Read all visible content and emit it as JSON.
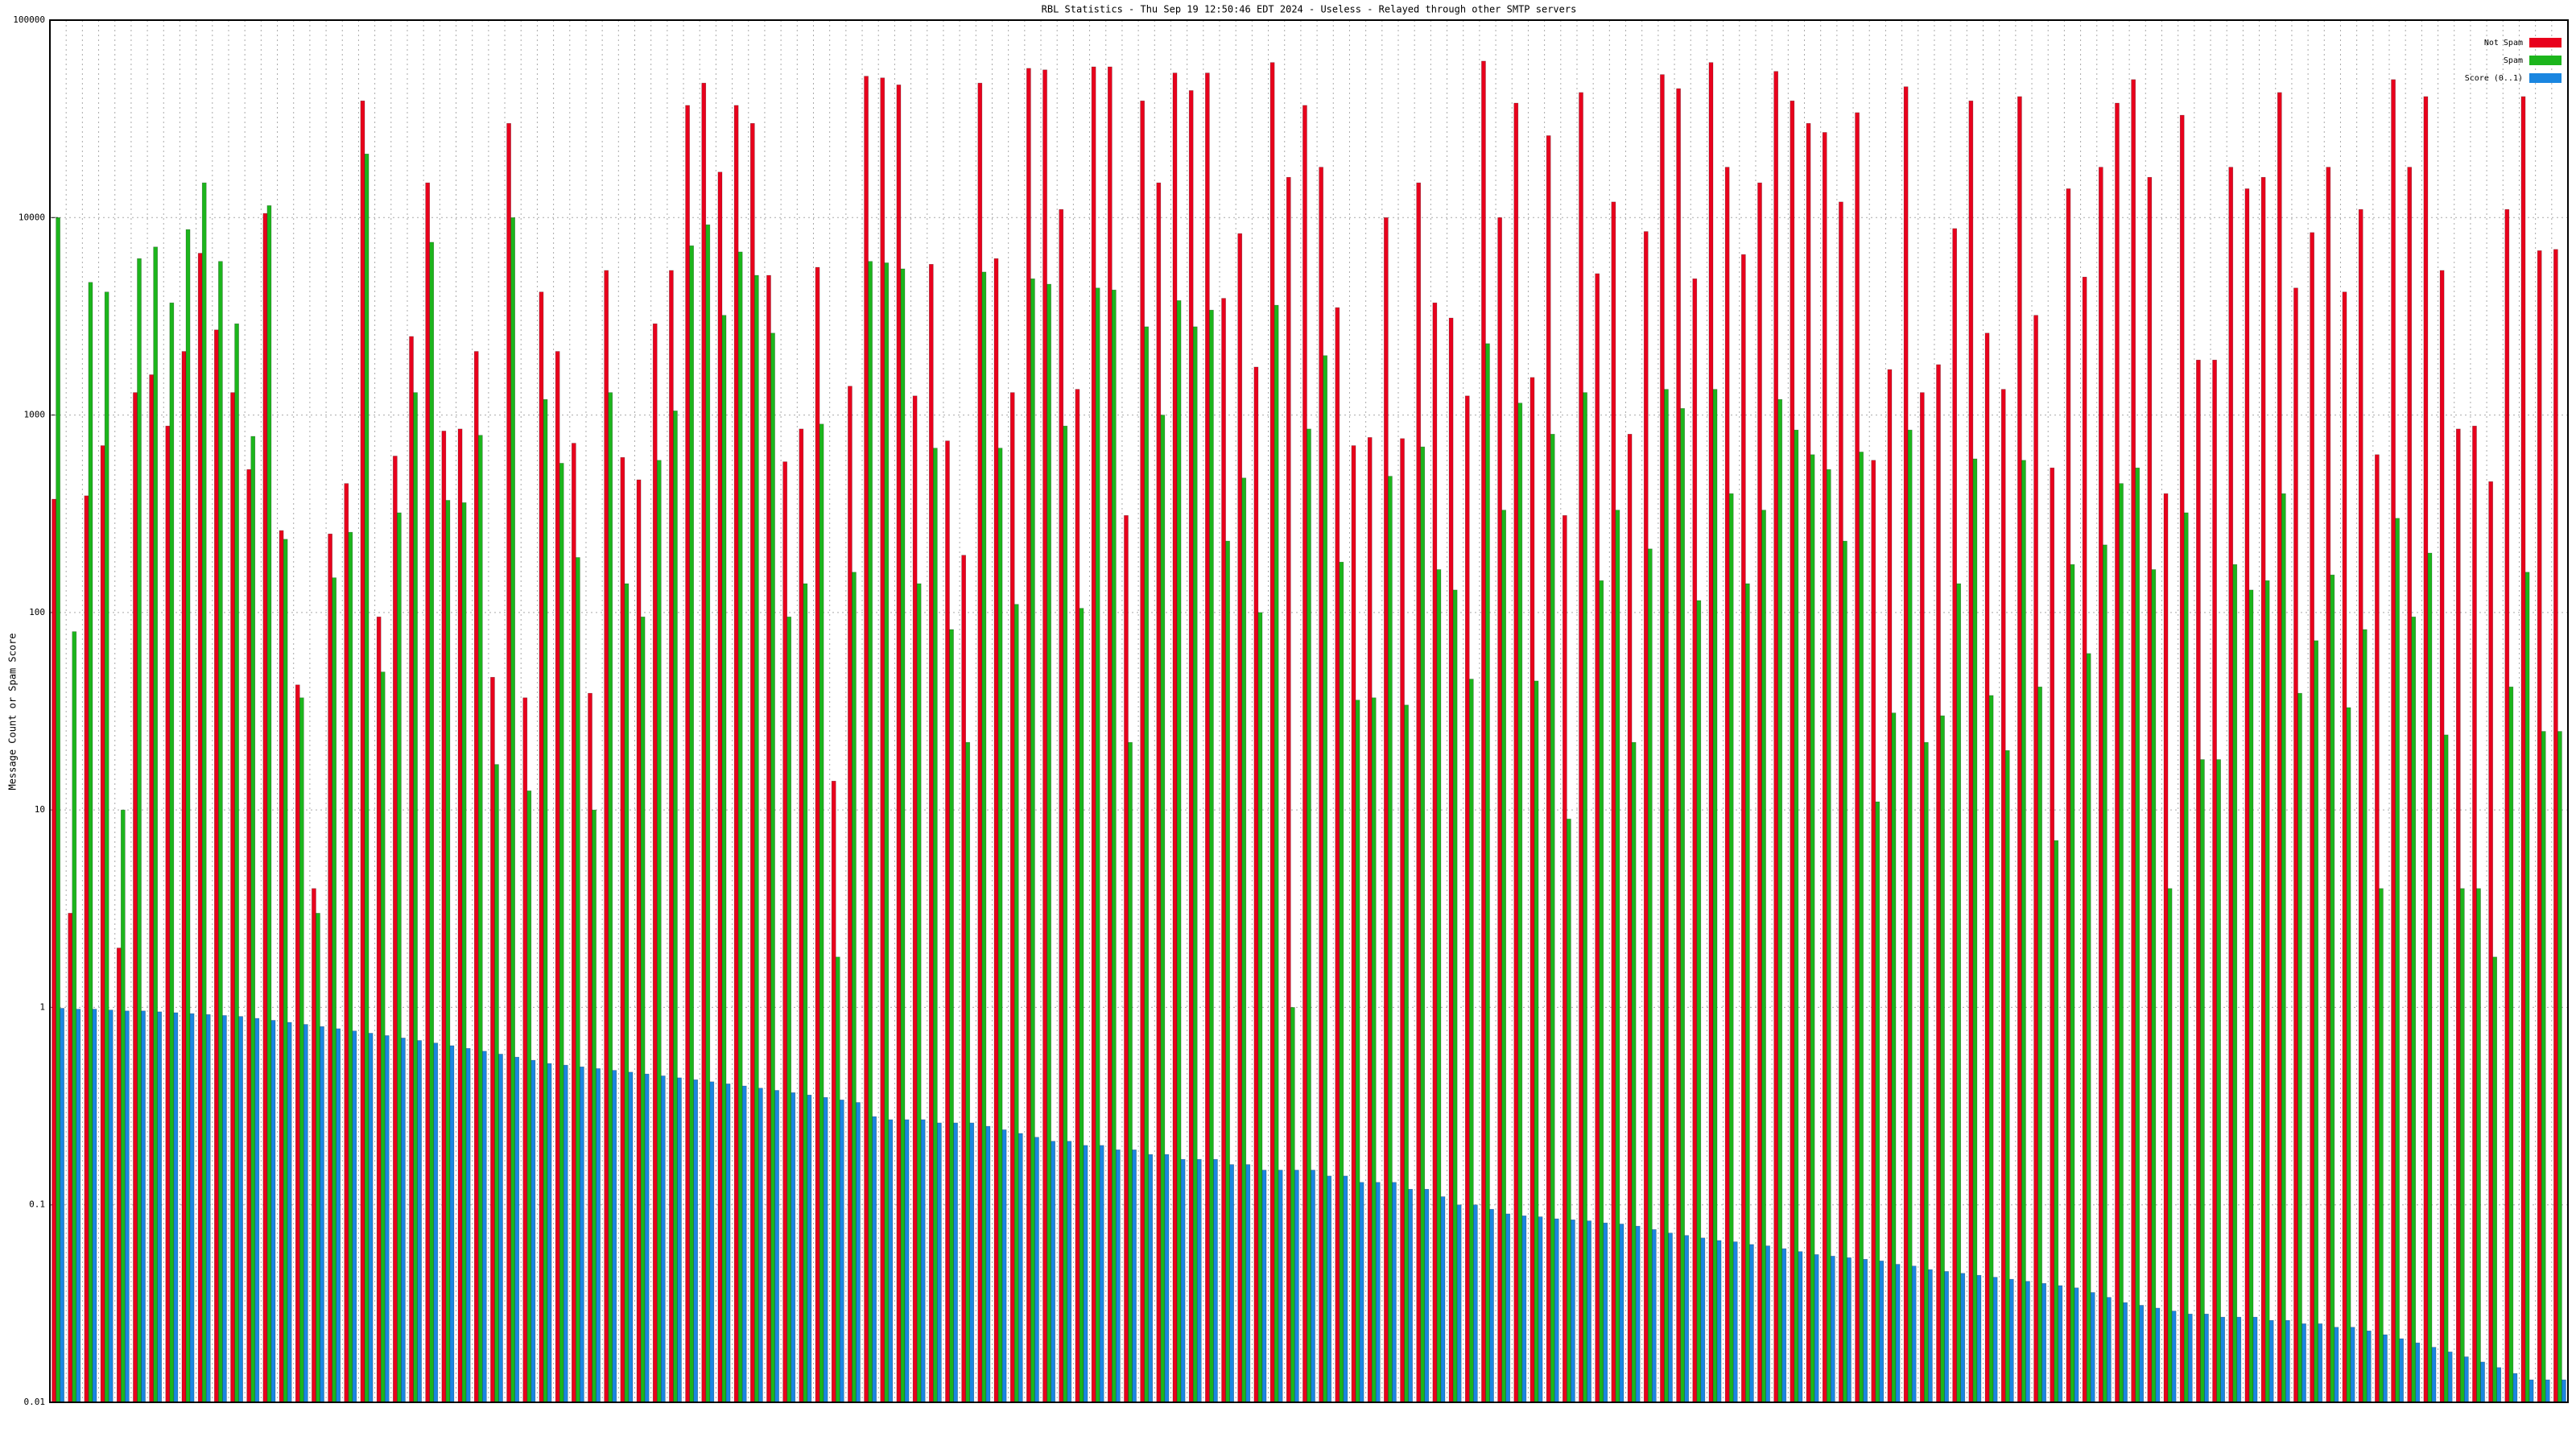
{
  "chart_data": {
    "type": "bar",
    "title": "RBL Statistics - Thu Sep 19 12:50:46 EDT 2024 - Useless - Relayed through other SMTP servers",
    "y_label": "Message Count or Spam Score",
    "log_scale": true,
    "grid": true,
    "legend": "upper right",
    "ylim": [
      0.01,
      100000
    ],
    "yticks": [
      0.01,
      0.1,
      1,
      10,
      100,
      1000,
      10000,
      100000
    ],
    "categories": [
      null,
      null,
      null,
      null,
      null,
      null,
      null,
      null,
      null,
      null,
      null,
      null,
      null,
      null,
      null,
      null,
      null,
      null,
      null,
      null,
      null,
      null,
      null,
      null,
      null,
      null,
      null,
      null,
      null,
      null,
      null,
      null,
      null,
      null,
      null,
      null,
      null,
      null,
      null,
      null,
      null,
      null,
      null,
      null,
      null,
      null,
      null,
      null,
      null,
      null,
      null,
      null,
      null,
      null,
      null,
      null,
      null,
      null,
      null,
      null,
      null,
      null,
      null,
      null,
      null,
      null,
      null,
      null,
      null,
      null,
      null,
      null,
      null,
      null,
      null,
      null,
      null,
      null,
      null,
      null,
      null,
      null,
      null,
      null,
      null,
      null,
      null,
      null,
      null,
      null,
      null,
      null,
      null,
      null,
      null,
      null,
      null,
      null,
      null,
      null,
      null,
      null,
      null,
      null,
      null,
      null,
      null,
      null,
      null,
      null,
      null,
      null,
      null,
      null,
      null,
      null,
      null,
      null,
      null,
      null,
      null,
      null,
      null,
      null,
      null,
      null,
      null,
      null,
      null,
      null,
      null,
      null,
      null,
      null,
      null,
      null,
      null,
      null,
      null,
      null,
      null,
      null,
      null,
      null,
      null,
      null,
      null,
      null,
      null,
      null,
      null,
      null,
      null,
      null,
      null
    ],
    "series": [
      {
        "name": "Not Spam",
        "color": "#e8001c",
        "values": [
          375,
          3,
          390,
          700,
          2,
          1300,
          1600,
          880,
          2100,
          6600,
          2700,
          1300,
          530,
          10500,
          260,
          43,
          4,
          250,
          450,
          39000,
          95,
          620,
          2500,
          15000,
          830,
          850,
          2100,
          47,
          30000,
          37,
          4200,
          2100,
          720,
          39,
          5400,
          610,
          470,
          2900,
          5400,
          37000,
          48000,
          17000,
          37000,
          30000,
          5100,
          580,
          850,
          5600,
          14,
          1400,
          52000,
          51000,
          47000,
          1250,
          5800,
          740,
          195,
          48000,
          6200,
          1300,
          57000,
          56000,
          11000,
          1350,
          58000,
          58000,
          310,
          39000,
          15000,
          54000,
          44000,
          54000,
          3900,
          8300,
          1750,
          61000,
          16000,
          37000,
          18000,
          3500,
          700,
          770,
          10000,
          760,
          15000,
          3700,
          3100,
          1250,
          62000,
          10000,
          38000,
          1550,
          26000,
          310,
          43000,
          5200,
          12000,
          800,
          8500,
          53000,
          45000,
          4900,
          61000,
          18000,
          6500,
          15000,
          55000,
          39000,
          30000,
          27000,
          12000,
          34000,
          590,
          1700,
          46000,
          1300,
          1800,
          8800,
          39000,
          2600,
          1350,
          41000,
          3200,
          540,
          14000,
          5000,
          18000,
          38000,
          50000,
          16000,
          400,
          33000,
          1900,
          1900,
          18000,
          14000,
          16000,
          43000,
          4400,
          8400,
          18000,
          4200,
          11000,
          630,
          50000,
          18000,
          41000,
          5400,
          850,
          880,
          460,
          11000,
          41000,
          6800,
          6900
        ]
      },
      {
        "name": "Spam",
        "color": "#1cb51c",
        "values": [
          10000,
          80,
          4700,
          4200,
          10,
          6200,
          7100,
          3700,
          8700,
          15000,
          6000,
          2900,
          780,
          11500,
          235,
          37,
          3,
          150,
          255,
          21000,
          50,
          320,
          1300,
          7500,
          370,
          360,
          790,
          17,
          10000,
          12.5,
          1200,
          570,
          190,
          10,
          1300,
          140,
          95,
          590,
          1050,
          7200,
          9200,
          3200,
          6700,
          5100,
          2600,
          95,
          140,
          900,
          1.8,
          160,
          6000,
          5900,
          5500,
          140,
          680,
          82,
          22,
          5300,
          680,
          110,
          4900,
          4600,
          880,
          105,
          4400,
          4300,
          22,
          2800,
          1000,
          3800,
          2800,
          3400,
          230,
          480,
          100,
          3600,
          1,
          850,
          2000,
          180,
          36,
          37,
          490,
          34,
          690,
          165,
          130,
          46,
          2300,
          330,
          1150,
          45,
          800,
          9,
          1300,
          145,
          330,
          22,
          210,
          1350,
          1080,
          115,
          1350,
          400,
          140,
          330,
          1200,
          840,
          630,
          530,
          230,
          650,
          11,
          31,
          840,
          22,
          30,
          140,
          600,
          38,
          20,
          590,
          42,
          7,
          175,
          62,
          220,
          450,
          540,
          165,
          4,
          320,
          18,
          18,
          175,
          130,
          145,
          400,
          39,
          72,
          155,
          33,
          82,
          4,
          300,
          95,
          200,
          24,
          4,
          4,
          1.8,
          42,
          160,
          25,
          25
        ]
      },
      {
        "name": "Score (0..1)",
        "color": "#1a86e0",
        "values": [
          0.99,
          0.98,
          0.98,
          0.97,
          0.96,
          0.96,
          0.95,
          0.94,
          0.93,
          0.92,
          0.91,
          0.9,
          0.88,
          0.86,
          0.84,
          0.82,
          0.8,
          0.78,
          0.76,
          0.74,
          0.72,
          0.7,
          0.68,
          0.66,
          0.64,
          0.62,
          0.6,
          0.58,
          0.56,
          0.54,
          0.52,
          0.51,
          0.5,
          0.49,
          0.48,
          0.47,
          0.46,
          0.45,
          0.44,
          0.43,
          0.42,
          0.41,
          0.4,
          0.39,
          0.38,
          0.37,
          0.36,
          0.35,
          0.34,
          0.33,
          0.28,
          0.27,
          0.27,
          0.27,
          0.26,
          0.26,
          0.26,
          0.25,
          0.24,
          0.23,
          0.22,
          0.21,
          0.21,
          0.2,
          0.2,
          0.19,
          0.19,
          0.18,
          0.18,
          0.17,
          0.17,
          0.17,
          0.16,
          0.16,
          0.15,
          0.15,
          0.15,
          0.15,
          0.14,
          0.14,
          0.13,
          0.13,
          0.13,
          0.12,
          0.12,
          0.11,
          0.1,
          0.1,
          0.095,
          0.09,
          0.088,
          0.087,
          0.085,
          0.084,
          0.083,
          0.081,
          0.08,
          0.078,
          0.075,
          0.072,
          0.07,
          0.068,
          0.066,
          0.065,
          0.063,
          0.062,
          0.06,
          0.058,
          0.056,
          0.055,
          0.054,
          0.053,
          0.052,
          0.05,
          0.049,
          0.047,
          0.046,
          0.045,
          0.044,
          0.043,
          0.042,
          0.041,
          0.04,
          0.039,
          0.038,
          0.036,
          0.034,
          0.032,
          0.031,
          0.03,
          0.029,
          0.028,
          0.028,
          0.027,
          0.027,
          0.027,
          0.026,
          0.026,
          0.025,
          0.025,
          0.024,
          0.024,
          0.023,
          0.022,
          0.021,
          0.02,
          0.019,
          0.018,
          0.017,
          0.016,
          0.015,
          0.014,
          0.013,
          0.013,
          0.013
        ]
      }
    ]
  }
}
